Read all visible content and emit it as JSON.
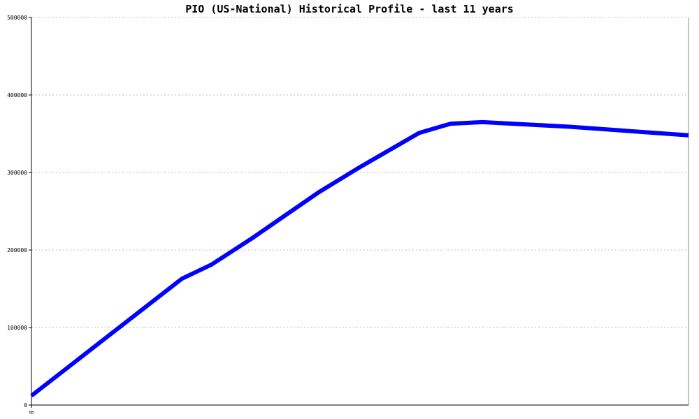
{
  "chart_data": {
    "type": "line",
    "title": "PIO (US-National) Historical Profile - last 11 years",
    "x": [
      0,
      2.52,
      3.01,
      3.69,
      4.8,
      5.5,
      6.49,
      7.02,
      7.55,
      9.01,
      11
    ],
    "series": [
      {
        "color": "#0000ff",
        "values": [
          12000,
          163000,
          181000,
          215000,
          274000,
          307000,
          351000,
          363000,
          365000,
          359000,
          348000
        ]
      }
    ],
    "xlim": [
      0,
      11
    ],
    "xticks": [
      0
    ],
    "ylim": [
      0,
      500000
    ],
    "yticks": [
      0,
      100000,
      200000,
      300000,
      400000,
      500000
    ],
    "grid": true
  }
}
